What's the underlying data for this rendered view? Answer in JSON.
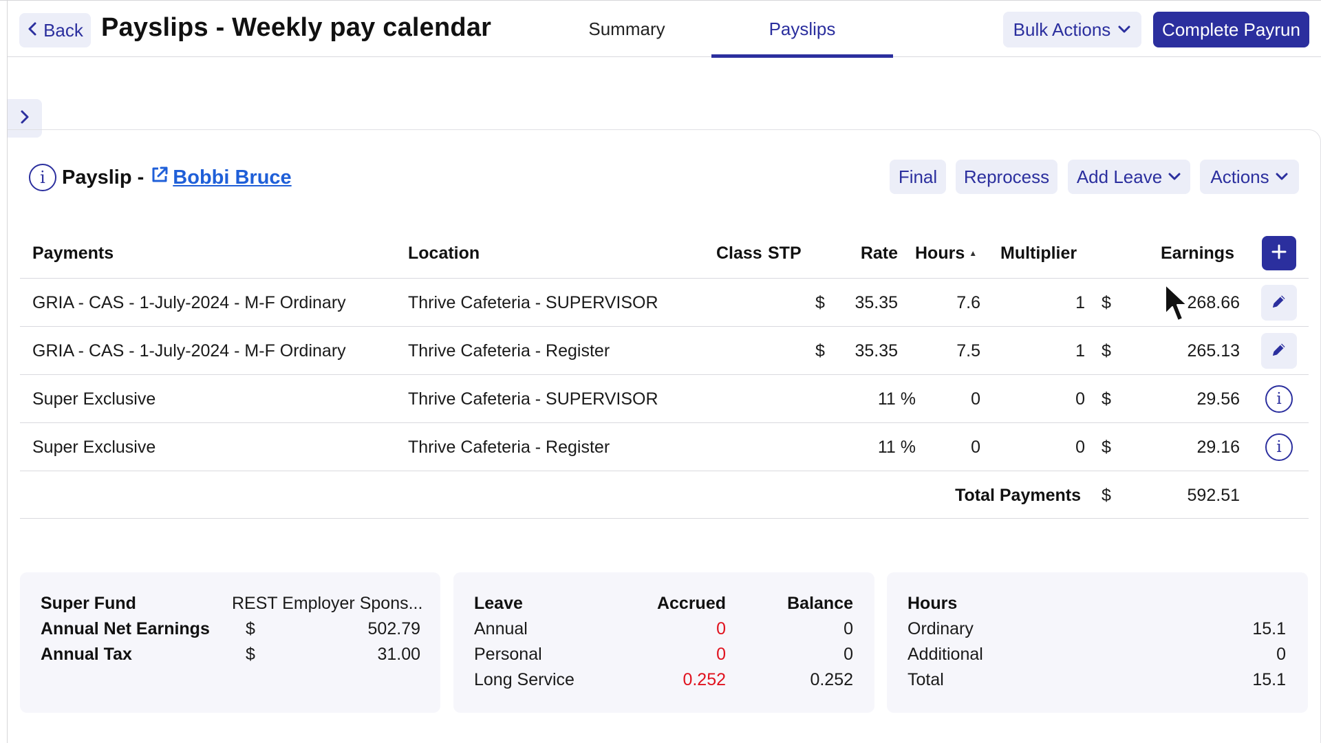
{
  "header": {
    "back_label": "Back",
    "title": "Payslips - Weekly pay calendar",
    "tabs": [
      {
        "label": "Summary",
        "active": false
      },
      {
        "label": "Payslips",
        "active": true
      }
    ],
    "bulk_actions_label": "Bulk Actions",
    "complete_payrun_label": "Complete Payrun"
  },
  "payslip": {
    "label": "Payslip -",
    "employee_name": "Bobbi Bruce",
    "buttons": {
      "final": "Final",
      "reprocess": "Reprocess",
      "add_leave": "Add Leave",
      "actions": "Actions"
    }
  },
  "table": {
    "headers": {
      "payments": "Payments",
      "location": "Location",
      "class": "Class",
      "stp": "STP",
      "rate": "Rate",
      "hours": "Hours",
      "multiplier": "Multiplier",
      "earnings": "Earnings"
    },
    "rows": [
      {
        "payment": "GRIA - CAS - 1-July-2024 - M-F Ordinary",
        "location": "Thrive Cafeteria - SUPERVISOR",
        "rate_currency": "$",
        "rate": "35.35",
        "hours": "7.6",
        "multiplier": "1",
        "earn_currency": "$",
        "earnings": "268.66",
        "action": "edit"
      },
      {
        "payment": "GRIA - CAS - 1-July-2024 - M-F Ordinary",
        "location": "Thrive Cafeteria - Register",
        "rate_currency": "$",
        "rate": "35.35",
        "hours": "7.5",
        "multiplier": "1",
        "earn_currency": "$",
        "earnings": "265.13",
        "action": "edit"
      },
      {
        "payment": "Super Exclusive",
        "location": "Thrive Cafeteria - SUPERVISOR",
        "rate_currency": "",
        "rate": "11 %",
        "hours": "0",
        "multiplier": "0",
        "earn_currency": "$",
        "earnings": "29.56",
        "action": "info"
      },
      {
        "payment": "Super Exclusive",
        "location": "Thrive Cafeteria - Register",
        "rate_currency": "",
        "rate": "11 %",
        "hours": "0",
        "multiplier": "0",
        "earn_currency": "$",
        "earnings": "29.16",
        "action": "info"
      }
    ],
    "total_label": "Total Payments",
    "total_currency": "$",
    "total_value": "592.51"
  },
  "summary": {
    "super_fund_label": "Super Fund",
    "super_fund_value": "REST Employer Spons...",
    "annual_net_label": "Annual Net Earnings",
    "annual_net_currency": "$",
    "annual_net_value": "502.79",
    "annual_tax_label": "Annual Tax",
    "annual_tax_currency": "$",
    "annual_tax_value": "31.00"
  },
  "leave": {
    "header": "Leave",
    "accrued_header": "Accrued",
    "balance_header": "Balance",
    "rows": [
      {
        "name": "Annual",
        "accrued": "0",
        "balance": "0"
      },
      {
        "name": "Personal",
        "accrued": "0",
        "balance": "0"
      },
      {
        "name": "Long Service",
        "accrued": "0.252",
        "balance": "0.252"
      }
    ]
  },
  "hours": {
    "header": "Hours",
    "rows": [
      {
        "name": "Ordinary",
        "value": "15.1"
      },
      {
        "name": "Additional",
        "value": "0"
      },
      {
        "name": "Total",
        "value": "15.1"
      }
    ]
  },
  "colors": {
    "accent": "#2b2f9e",
    "link": "#1f5fd8",
    "pill_bg": "#eceef8",
    "accrued_text": "#e0121e",
    "panel_bg": "#f6f6fb"
  },
  "icons": {
    "back": "chevron-left-icon",
    "dropdown": "chevron-down-icon",
    "sidebar_toggle": "chevron-right-icon",
    "info": "info-icon",
    "external_link": "external-link-icon",
    "add": "plus-icon",
    "edit": "pencil-icon"
  }
}
